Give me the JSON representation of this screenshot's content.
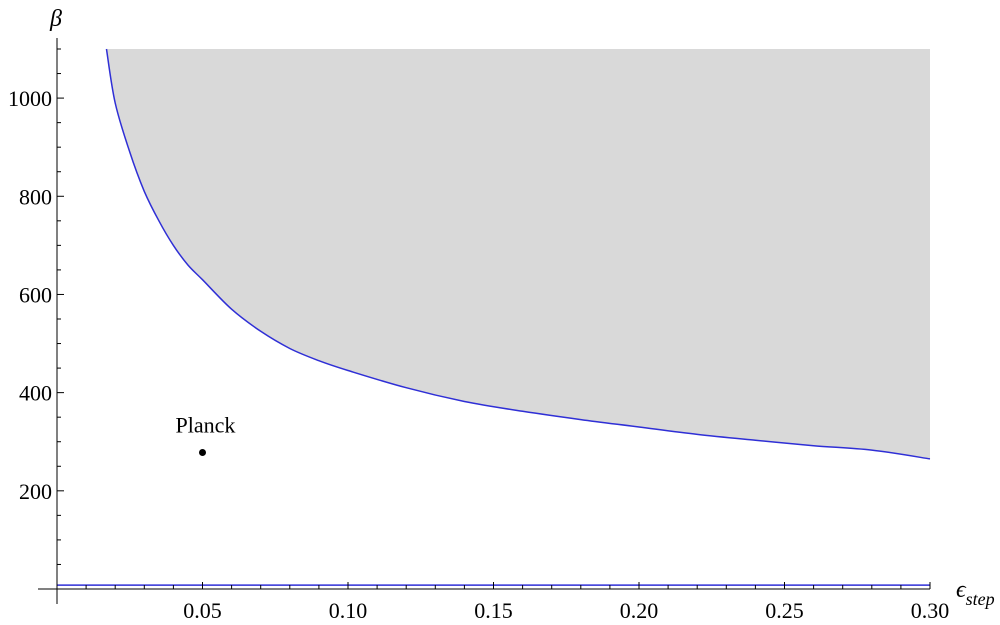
{
  "chart_data": {
    "type": "area",
    "xlabel": "ϵ",
    "xlabel_sub": "step",
    "ylabel": "β",
    "xlim": [
      0,
      0.3
    ],
    "ylim": [
      0,
      1100
    ],
    "x_ticks": [
      0.05,
      0.1,
      0.15,
      0.2,
      0.25,
      0.3
    ],
    "x_tick_labels": [
      "0.05",
      "0.10",
      "0.15",
      "0.20",
      "0.25",
      "0.30"
    ],
    "y_ticks": [
      200,
      400,
      600,
      800,
      1000
    ],
    "y_tick_labels": [
      "200",
      "400",
      "600",
      "800",
      "1000"
    ],
    "grid": false,
    "colors": {
      "region_fill": "#d9d9d9",
      "curve": "#2f2fd6",
      "point": "#000000",
      "axes": "#000000"
    },
    "series": [
      {
        "kind": "boundary-curve",
        "x": [
          0.017,
          0.02,
          0.025,
          0.03,
          0.035,
          0.04,
          0.045,
          0.05,
          0.06,
          0.07,
          0.08,
          0.09,
          0.1,
          0.12,
          0.14,
          0.16,
          0.18,
          0.2,
          0.22,
          0.24,
          0.26,
          0.28,
          0.3
        ],
        "y": [
          1100,
          990,
          890,
          810,
          750,
          700,
          660,
          630,
          570,
          525,
          490,
          465,
          445,
          410,
          382,
          362,
          345,
          330,
          315,
          303,
          292,
          283,
          265
        ],
        "shaded_above_to": 1100
      },
      {
        "kind": "horizontal-line",
        "x": [
          0,
          0.3
        ],
        "y": [
          8,
          8
        ]
      }
    ],
    "points": [
      {
        "label": "Planck",
        "x": 0.05,
        "y": 278
      }
    ]
  }
}
